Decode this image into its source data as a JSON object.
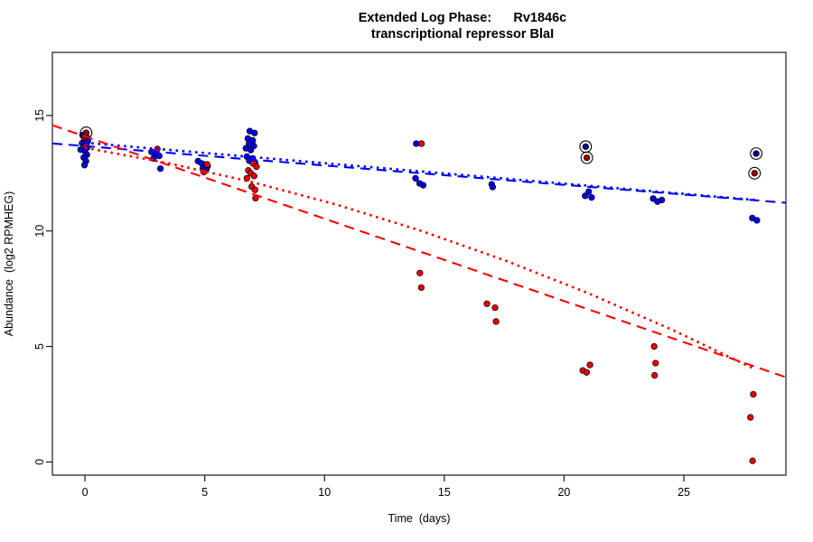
{
  "chart_data": {
    "type": "scatter",
    "title_line1": "Extended Log Phase:      Rv1846c",
    "title_line2": "transcriptional repressor BlaI",
    "xlabel": "Time  (days)",
    "ylabel": "Abundance  (log2 RPMHEG)",
    "x_ticks": [
      0,
      5,
      10,
      15,
      20,
      25
    ],
    "y_ticks": [
      0,
      5,
      10,
      15
    ],
    "xlim": [
      -1.36,
      29.26
    ],
    "ylim": [
      -0.57,
      17.73
    ],
    "grid": false,
    "legend": "none",
    "colors": {
      "blue": "#0000e8",
      "red": "#e80000",
      "blue_dark": "#000090",
      "red_dark": "#990000",
      "line_blue": "#0000ff",
      "line_red": "#ff0000",
      "axis": "#1a1a1a"
    },
    "series": [
      {
        "name": "blue-points",
        "color_key": "blue",
        "points": [
          [
            -0.1,
            14.15
          ],
          [
            0.08,
            14.05
          ],
          [
            -0.02,
            13.97
          ],
          [
            0.12,
            13.88
          ],
          [
            -0.12,
            13.8
          ],
          [
            0.02,
            13.72
          ],
          [
            0.1,
            13.62
          ],
          [
            -0.18,
            13.52
          ],
          [
            0.0,
            13.45
          ],
          [
            0.08,
            13.3
          ],
          [
            -0.05,
            13.18
          ],
          [
            0.04,
            13.02
          ],
          [
            -0.02,
            12.85
          ],
          [
            2.78,
            13.42
          ],
          [
            2.95,
            13.32
          ],
          [
            3.1,
            13.25
          ],
          [
            2.86,
            13.14
          ],
          [
            3.15,
            12.7
          ],
          [
            4.72,
            13.02
          ],
          [
            4.88,
            12.92
          ],
          [
            5.02,
            12.86
          ],
          [
            5.12,
            12.8
          ],
          [
            4.92,
            12.7
          ],
          [
            5.06,
            12.64
          ],
          [
            6.88,
            14.32
          ],
          [
            7.08,
            14.24
          ],
          [
            6.8,
            14.0
          ],
          [
            7.0,
            13.92
          ],
          [
            6.85,
            13.78
          ],
          [
            7.05,
            13.68
          ],
          [
            6.72,
            13.58
          ],
          [
            6.92,
            13.5
          ],
          [
            6.76,
            13.22
          ],
          [
            7.0,
            13.14
          ],
          [
            6.86,
            13.04
          ],
          [
            7.1,
            12.96
          ],
          [
            13.83,
            13.78
          ],
          [
            13.8,
            12.28
          ],
          [
            13.97,
            12.06
          ],
          [
            14.12,
            11.98
          ],
          [
            16.98,
            12.02
          ],
          [
            17.02,
            11.9
          ],
          [
            21.03,
            11.7
          ],
          [
            20.88,
            11.52
          ],
          [
            21.15,
            11.45
          ],
          [
            23.72,
            11.4
          ],
          [
            24.08,
            11.34
          ],
          [
            23.9,
            11.27
          ],
          [
            27.86,
            10.56
          ],
          [
            28.05,
            10.46
          ]
        ]
      },
      {
        "name": "red-points",
        "color_key": "red",
        "points": [
          [
            -0.04,
            14.05
          ],
          [
            0.04,
            13.68
          ],
          [
            3.02,
            13.55
          ],
          [
            5.1,
            12.88
          ],
          [
            4.96,
            12.55
          ],
          [
            7.02,
            12.92
          ],
          [
            7.16,
            12.78
          ],
          [
            6.82,
            12.62
          ],
          [
            6.92,
            12.5
          ],
          [
            7.06,
            12.38
          ],
          [
            6.76,
            12.28
          ],
          [
            6.96,
            11.92
          ],
          [
            7.1,
            11.78
          ],
          [
            7.12,
            11.42
          ],
          [
            14.05,
            13.78
          ],
          [
            13.98,
            8.18
          ],
          [
            14.04,
            7.55
          ],
          [
            16.78,
            6.85
          ],
          [
            17.12,
            6.68
          ],
          [
            17.16,
            6.08
          ],
          [
            21.08,
            4.2
          ],
          [
            20.78,
            3.96
          ],
          [
            20.94,
            3.88
          ],
          [
            23.76,
            5.0
          ],
          [
            23.82,
            4.28
          ],
          [
            23.78,
            3.75
          ],
          [
            27.9,
            2.93
          ],
          [
            27.78,
            1.93
          ],
          [
            27.87,
            0.05
          ]
        ]
      }
    ],
    "outlier_circled_points": [
      {
        "x": 0.05,
        "y": 14.25,
        "color_key": "red_dark"
      },
      {
        "x": 20.9,
        "y": 13.65,
        "color_key": "blue_dark"
      },
      {
        "x": 20.95,
        "y": 13.17,
        "color_key": "red_dark"
      },
      {
        "x": 28.02,
        "y": 13.35,
        "color_key": "blue_dark"
      },
      {
        "x": 27.95,
        "y": 12.5,
        "color_key": "red_dark"
      }
    ],
    "trend_lines": [
      {
        "name": "blue-dashed-fit",
        "color_key": "line_blue",
        "style": "dashed",
        "points": [
          [
            -1.36,
            13.79
          ],
          [
            29.26,
            11.22
          ]
        ]
      },
      {
        "name": "blue-dotted-fit",
        "color_key": "line_blue",
        "style": "dotted",
        "points": [
          [
            0,
            13.82
          ],
          [
            28,
            11.34
          ]
        ]
      },
      {
        "name": "red-dashed-fit",
        "color_key": "line_red",
        "style": "dashed",
        "points": [
          [
            -1.36,
            14.58
          ],
          [
            29.26,
            3.67
          ]
        ]
      },
      {
        "name": "red-dotted-fit",
        "color_key": "line_red",
        "style": "dotted",
        "points": [
          [
            0,
            13.6
          ],
          [
            3.5,
            12.93
          ],
          [
            7,
            12.11
          ],
          [
            10.5,
            11.14
          ],
          [
            14,
            10.02
          ],
          [
            17.5,
            8.74
          ],
          [
            21,
            7.31
          ],
          [
            24.5,
            5.73
          ],
          [
            28,
            4.0
          ]
        ]
      }
    ]
  }
}
